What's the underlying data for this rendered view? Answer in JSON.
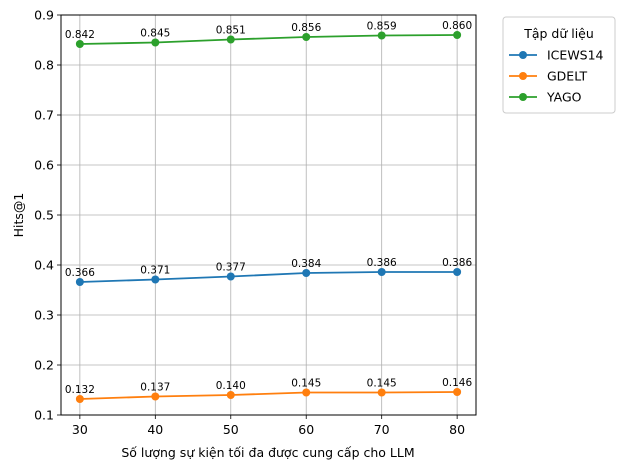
{
  "chart_data": {
    "type": "line",
    "title": "",
    "xlabel": "Số lượng sự kiện tối đa được cung cấp cho LLM",
    "ylabel": "Hits@1",
    "x": [
      30,
      40,
      50,
      60,
      70,
      80
    ],
    "xlim": [
      27.5,
      82.5
    ],
    "ylim": [
      0.1,
      0.9
    ],
    "xticks": [
      "30",
      "40",
      "50",
      "60",
      "70",
      "80"
    ],
    "yticks": [
      "0.1",
      "0.2",
      "0.3",
      "0.4",
      "0.5",
      "0.6",
      "0.7",
      "0.8",
      "0.9"
    ],
    "grid": true,
    "legend": {
      "title": "Tập dữ liệu",
      "placement": "outside-upper-right"
    },
    "series": [
      {
        "name": "ICEWS14",
        "color": "#1f77b4",
        "values": [
          0.366,
          0.371,
          0.377,
          0.384,
          0.386,
          0.386
        ],
        "labels": [
          "0.366",
          "0.371",
          "0.377",
          "0.384",
          "0.386",
          "0.386"
        ]
      },
      {
        "name": "GDELT",
        "color": "#ff7f0e",
        "values": [
          0.132,
          0.137,
          0.14,
          0.145,
          0.145,
          0.146
        ],
        "labels": [
          "0.132",
          "0.137",
          "0.140",
          "0.145",
          "0.145",
          "0.146"
        ]
      },
      {
        "name": "YAGO",
        "color": "#2ca02c",
        "values": [
          0.842,
          0.845,
          0.851,
          0.856,
          0.859,
          0.86
        ],
        "labels": [
          "0.842",
          "0.845",
          "0.851",
          "0.856",
          "0.859",
          "0.860"
        ]
      }
    ]
  }
}
